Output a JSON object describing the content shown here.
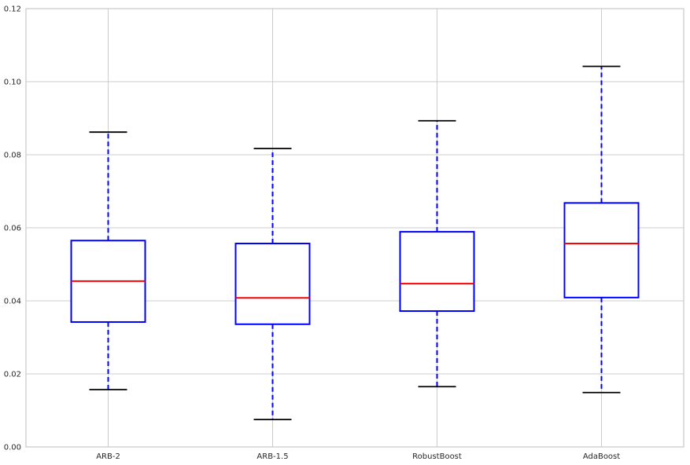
{
  "chart_data": {
    "type": "boxplot",
    "title": "",
    "xlabel": "",
    "ylabel": "",
    "ylim": [
      0.0,
      0.12
    ],
    "yticks": [
      0.0,
      0.02,
      0.04,
      0.06,
      0.08,
      0.1,
      0.12
    ],
    "ytick_labels": [
      "0.00",
      "0.02",
      "0.04",
      "0.06",
      "0.08",
      "0.10",
      "0.12"
    ],
    "grid": true,
    "categories": [
      "ARB-2",
      "ARB-1.5",
      "RobustBoost",
      "AdaBoost"
    ],
    "boxes": [
      {
        "label": "ARB-2",
        "whisker_low": 0.0157,
        "q1": 0.0342,
        "median": 0.0454,
        "q3": 0.0565,
        "whisker_high": 0.0862
      },
      {
        "label": "ARB-1.5",
        "whisker_low": 0.0075,
        "q1": 0.0336,
        "median": 0.0408,
        "q3": 0.0557,
        "whisker_high": 0.0817
      },
      {
        "label": "RobustBoost",
        "whisker_low": 0.0165,
        "q1": 0.0372,
        "median": 0.0447,
        "q3": 0.0589,
        "whisker_high": 0.0893
      },
      {
        "label": "AdaBoost",
        "whisker_low": 0.0149,
        "q1": 0.0409,
        "median": 0.0557,
        "q3": 0.0668,
        "whisker_high": 0.1042
      }
    ],
    "colors": {
      "box": "#0000ff",
      "median": "#ff0000",
      "whisker": "#0000ff",
      "cap": "#000000",
      "grid": "#cccccc",
      "frame": "#bcbcbc"
    }
  }
}
